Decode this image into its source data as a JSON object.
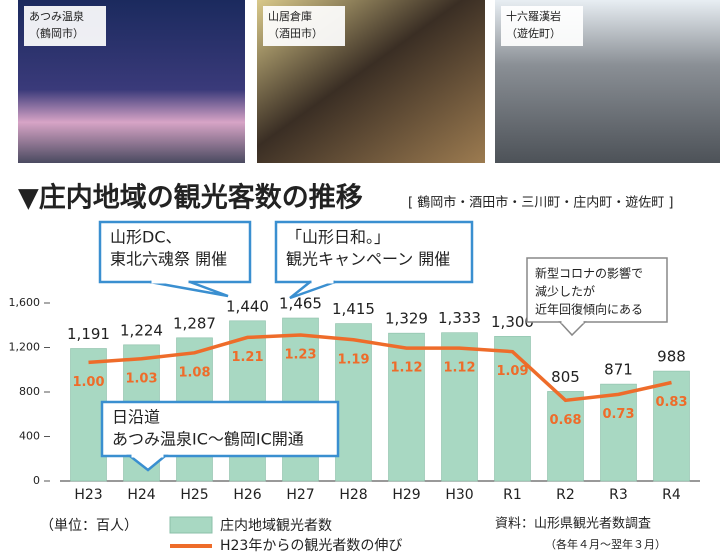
{
  "photos": [
    {
      "lines": [
        "あつみ温泉",
        "（鶴岡市）"
      ]
    },
    {
      "lines": [
        "山居倉庫",
        "（酒田市）"
      ]
    },
    {
      "lines": [
        "十六羅漢岩",
        "（遊佐町）"
      ]
    }
  ],
  "chart_data": {
    "type": "bar",
    "title": "▼庄内地域の観光客数の推移",
    "subtitle": "[ 鶴岡市・酒田市・三川町・庄内町・遊佐町 ]",
    "unit_note": "（単位：百人）",
    "source": "資料：山形県観光者数調査",
    "source_note": "（各年４月～翌年３月）",
    "categories": [
      "H23",
      "H24",
      "H25",
      "H26",
      "H27",
      "H28",
      "H29",
      "H30",
      "R1",
      "R2",
      "R3",
      "R4"
    ],
    "series": [
      {
        "name": "庄内地域観光者数",
        "color": "#a8d8c2",
        "values": [
          1191,
          1224,
          1287,
          1440,
          1465,
          1415,
          1329,
          1333,
          1300,
          805,
          871,
          988
        ],
        "value_labels": [
          "1,191",
          "1,224",
          "1,287",
          "1,440",
          "1,465",
          "1,415",
          "1,329",
          "1,333",
          "1,300",
          "805",
          "871",
          "988"
        ]
      },
      {
        "name": "H23年からの観光者数の伸び",
        "color": "#ee6c2a",
        "axis": "y2",
        "values": [
          1.0,
          1.03,
          1.08,
          1.21,
          1.23,
          1.19,
          1.12,
          1.12,
          1.09,
          0.68,
          0.73,
          0.83
        ],
        "value_labels": [
          "1.00",
          "1.03",
          "1.08",
          "1.21",
          "1.23",
          "1.19",
          "1.12",
          "1.12",
          "1.09",
          "0.68",
          "0.73",
          "0.83"
        ]
      }
    ],
    "ylim": [
      0,
      1600
    ],
    "yticks": [
      0,
      400,
      800,
      {
        "value": 1200,
        "label": "1,200"
      },
      {
        "value": 1600,
        "label": "1,600"
      }
    ],
    "y2lim": [
      0,
      1.5
    ],
    "y2ticks": [],
    "grid": false,
    "annotations": [
      {
        "lines": [
          "山形DC、",
          "東北六魂祭 開催"
        ]
      },
      {
        "lines": [
          "「山形日和。」",
          "観光キャンペーン 開催"
        ]
      },
      {
        "lines": [
          "日沿道",
          "あつみ温泉IC～鶴岡IC開通"
        ]
      },
      {
        "lines": [
          "新型コロナの影響で",
          "減少したが",
          "近年回復傾向にある"
        ]
      }
    ]
  }
}
